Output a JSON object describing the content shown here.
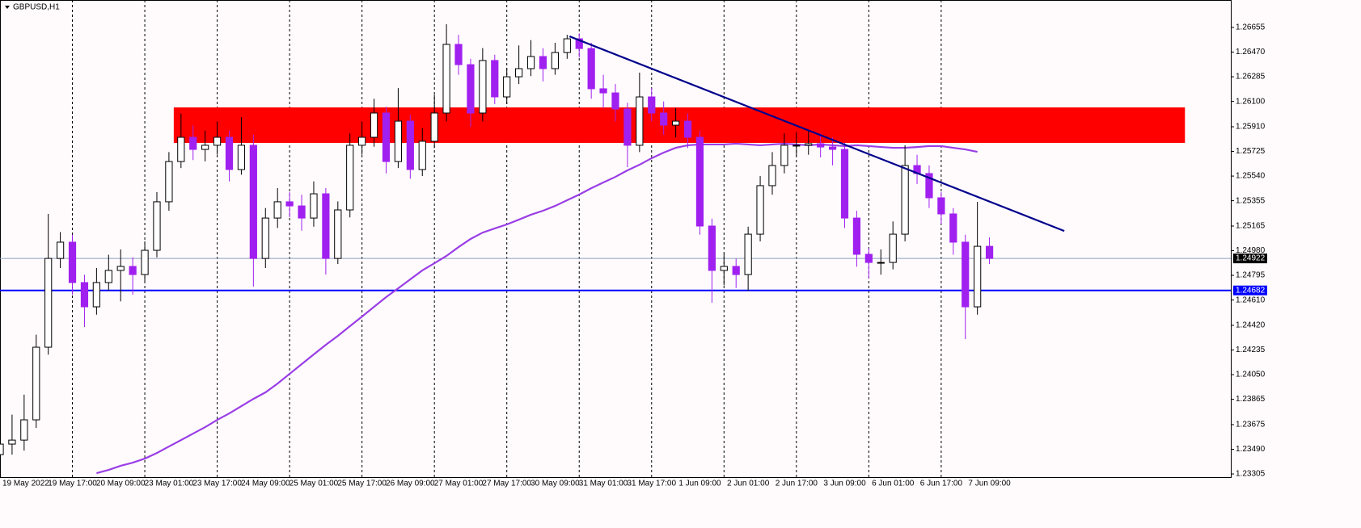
{
  "chart_data": {
    "type": "candlestick",
    "title": "GBPUSD,H1",
    "categories": [
      "19 May 2022",
      null,
      null,
      null,
      null,
      null,
      "19 May 17:00",
      null,
      null,
      null,
      "20 May 09:00",
      null,
      null,
      null,
      "23 May 01:00",
      null,
      null,
      null,
      "23 May 17:00",
      null,
      null,
      null,
      "24 May 09:00",
      null,
      null,
      null,
      "25 May 01:00",
      null,
      null,
      null,
      "25 May 17:00",
      null,
      null,
      null,
      "26 May 09:00",
      null,
      null,
      null,
      "27 May 01:00",
      null,
      null,
      null,
      "27 May 17:00",
      null,
      null,
      null,
      "30 May 09:00",
      null,
      null,
      null,
      "31 May 01:00",
      null,
      null,
      null,
      "31 May 17:00",
      null,
      null,
      null,
      "1 Jun 09:00",
      null,
      null,
      null,
      "2 Jun 01:00",
      null,
      null,
      null,
      "2 Jun 17:00",
      null,
      null,
      null,
      "3 Jun 09:00",
      null,
      null,
      null,
      "6 Jun 01:00",
      null,
      null,
      null,
      "6 Jun 17:00",
      null,
      null,
      null,
      "7 Jun 09:00"
    ],
    "open": [
      1.2345,
      1.23529,
      1.23559,
      1.23711,
      1.24256,
      1.24922,
      1.25044,
      1.24741,
      1.24559,
      1.24741,
      1.24832,
      1.24862,
      1.24801,
      1.24983,
      1.25347,
      1.25649,
      1.25831,
      1.2574,
      1.25771,
      1.25831,
      1.25589,
      1.25771,
      1.24922,
      1.25225,
      1.25347,
      1.25316,
      1.25225,
      1.25407,
      1.24922,
      1.25286,
      1.25771,
      1.25831,
      1.26013,
      1.25649,
      1.25952,
      1.25589,
      1.25801,
      1.26013,
      1.26528,
      1.26376,
      1.26013,
      1.26407,
      1.26134,
      1.26285,
      1.26346,
      1.26437,
      1.26346,
      1.26467,
      1.2657,
      1.26497,
      1.26195,
      1.26164,
      1.26043,
      1.25771,
      1.26134,
      1.26013,
      1.25922,
      1.25952,
      1.25831,
      1.25165,
      1.24832,
      1.24862,
      1.24801,
      1.25104,
      1.25468,
      1.25619,
      1.25771,
      1.25771,
      1.25783,
      1.25758,
      1.2574,
      1.25225,
      1.24953,
      1.24892,
      1.24892,
      1.25104,
      1.25619,
      1.25559,
      1.25377,
      1.25256,
      1.25044,
      1.24559,
      1.25013
    ],
    "high": [
      1.236,
      1.2375,
      1.239,
      1.2435,
      1.25256,
      1.2512,
      1.251,
      1.248,
      1.2485,
      1.2495,
      1.2499,
      1.2493,
      1.2505,
      1.2542,
      1.2572,
      1.2601,
      1.2592,
      1.2588,
      1.2595,
      1.2588,
      1.25983,
      1.2585,
      1.253,
      1.2545,
      1.2542,
      1.254,
      1.255,
      1.2545,
      1.2535,
      1.2586,
      1.2595,
      1.2612,
      1.2606,
      1.262,
      1.26,
      1.259,
      1.2615,
      1.26679,
      1.266,
      1.2642,
      1.265,
      1.2645,
      1.2635,
      1.2652,
      1.2656,
      1.265,
      1.2654,
      1.266,
      1.2661,
      1.2654,
      1.263,
      1.2623,
      1.2609,
      1.26316,
      1.262,
      1.261,
      1.2605,
      1.2601,
      1.2588,
      1.2522,
      1.2496,
      1.2492,
      1.2516,
      1.2554,
      1.2572,
      1.2586,
      1.2587,
      1.2588,
      1.2586,
      1.2583,
      1.2579,
      1.2528,
      1.25,
      1.2499,
      1.252,
      1.25771,
      1.257,
      1.2562,
      1.2542,
      1.253,
      1.251,
      1.25347,
      1.2508
    ],
    "low": [
      1.23378,
      1.2345,
      1.2348,
      1.2365,
      1.242,
      1.2485,
      1.2465,
      1.24408,
      1.245,
      1.2468,
      1.246,
      1.2465,
      1.2475,
      1.2493,
      1.2528,
      1.256,
      1.2566,
      1.2565,
      1.257,
      1.255,
      1.2555,
      1.2471,
      1.2485,
      1.2515,
      1.2523,
      1.2513,
      1.2516,
      1.24801,
      1.2488,
      1.2523,
      1.257,
      1.2576,
      1.2556,
      1.256,
      1.2552,
      1.2554,
      1.2575,
      1.2595,
      1.263,
      1.2591,
      1.2595,
      1.2608,
      1.2608,
      1.2623,
      1.2629,
      1.2625,
      1.263,
      1.2642,
      1.2643,
      1.2612,
      1.2605,
      1.2595,
      1.25607,
      1.2572,
      1.2595,
      1.2585,
      1.2583,
      1.2575,
      1.251,
      1.24589,
      1.2472,
      1.247,
      1.2468,
      1.2505,
      1.254,
      1.2556,
      1.2569,
      1.257,
      1.2568,
      1.2562,
      1.2515,
      1.2486,
      1.24771,
      1.248,
      1.2484,
      1.2505,
      1.2548,
      1.253,
      1.2518,
      1.2495,
      1.24317,
      1.245,
      1.2488
    ],
    "close": [
      1.23529,
      1.23559,
      1.23711,
      1.24256,
      1.24922,
      1.25044,
      1.24741,
      1.24559,
      1.24741,
      1.24832,
      1.24862,
      1.24801,
      1.24983,
      1.25347,
      1.25649,
      1.25831,
      1.2574,
      1.25771,
      1.25831,
      1.25589,
      1.25771,
      1.24922,
      1.25225,
      1.25347,
      1.25316,
      1.25225,
      1.25407,
      1.24922,
      1.25286,
      1.25771,
      1.25831,
      1.26013,
      1.25649,
      1.25952,
      1.25589,
      1.25801,
      1.26013,
      1.26528,
      1.26376,
      1.26013,
      1.26407,
      1.26134,
      1.26285,
      1.26346,
      1.26437,
      1.26346,
      1.26467,
      1.2657,
      1.26497,
      1.26195,
      1.26164,
      1.26043,
      1.25771,
      1.26134,
      1.26013,
      1.25922,
      1.25952,
      1.25831,
      1.25165,
      1.24832,
      1.24862,
      1.24801,
      1.25104,
      1.25468,
      1.25619,
      1.25771,
      1.25771,
      1.25783,
      1.25758,
      1.2574,
      1.25225,
      1.24953,
      1.24892,
      1.24892,
      1.25104,
      1.25619,
      1.25559,
      1.25377,
      1.25256,
      1.25044,
      1.24559,
      1.25013,
      1.24922
    ],
    "bull_color": "#000000",
    "bear_color": "#a020f0",
    "moving_average": {
      "color": "#9a3ee6",
      "values": [
        null,
        null,
        null,
        null,
        null,
        null,
        null,
        null,
        1.23311,
        1.23335,
        1.23366,
        1.2339,
        1.2342,
        1.23462,
        1.23511,
        1.23559,
        1.23608,
        1.23656,
        1.23711,
        1.23759,
        1.23814,
        1.23868,
        1.23917,
        1.23983,
        1.24056,
        1.24129,
        1.24202,
        1.24274,
        1.24341,
        1.24414,
        1.24486,
        1.24559,
        1.24632,
        1.24698,
        1.24765,
        1.24832,
        1.24886,
        1.24941,
        1.25007,
        1.25068,
        1.25116,
        1.25147,
        1.25177,
        1.25213,
        1.2525,
        1.2528,
        1.25316,
        1.25359,
        1.25401,
        1.25449,
        1.25492,
        1.25534,
        1.25583,
        1.25625,
        1.25674,
        1.25716,
        1.25752,
        1.25771,
        1.25777,
        1.25777,
        1.25777,
        1.25783,
        1.25777,
        1.25771,
        1.25777,
        1.25783,
        1.25777,
        1.25771,
        1.25777,
        1.25771,
        1.25765,
        1.25771,
        1.25765,
        1.25758,
        1.25752,
        1.25752,
        1.25758,
        1.25765,
        1.25765,
        1.25752,
        1.2574,
        1.25722,
        null
      ]
    },
    "zone": {
      "color": "#ff0000",
      "x": [
        14.4,
        98.2
      ],
      "y": [
        1.25789,
        1.26055
      ]
    },
    "trendline": {
      "color": "#00008b",
      "x": [
        47.2,
        88.2
      ],
      "y": [
        1.26588,
        1.25128
      ]
    },
    "hlines": [
      {
        "value": 1.24922,
        "color": "#8a9cc0",
        "label_color": "#000000",
        "line_width": 1
      },
      {
        "value": 1.24682,
        "color": "#0000ff",
        "label_color": "#0000ff",
        "line_width": 2
      }
    ],
    "xlim": [
      0,
      102
    ],
    "ylim": [
      1.23275,
      1.26861
    ],
    "yticks": [
      1.26655,
      {
        "value": 1.2647,
        "label": "1.26470"
      },
      1.26285,
      {
        "value": 1.261,
        "label": "1.26100"
      },
      {
        "value": 1.2591,
        "label": "1.25910"
      },
      1.25725,
      {
        "value": 1.2554,
        "label": "1.25540"
      },
      1.25355,
      1.25165,
      {
        "value": 1.2498,
        "label": "1.24980"
      },
      1.24795,
      {
        "value": 1.2461,
        "label": "1.24610"
      },
      {
        "value": 1.2442,
        "label": "1.24420"
      },
      1.24235,
      {
        "value": 1.2405,
        "label": "1.24050"
      },
      1.23865,
      1.23675,
      {
        "value": 1.2349,
        "label": "1.23490"
      },
      1.23305
    ]
  }
}
